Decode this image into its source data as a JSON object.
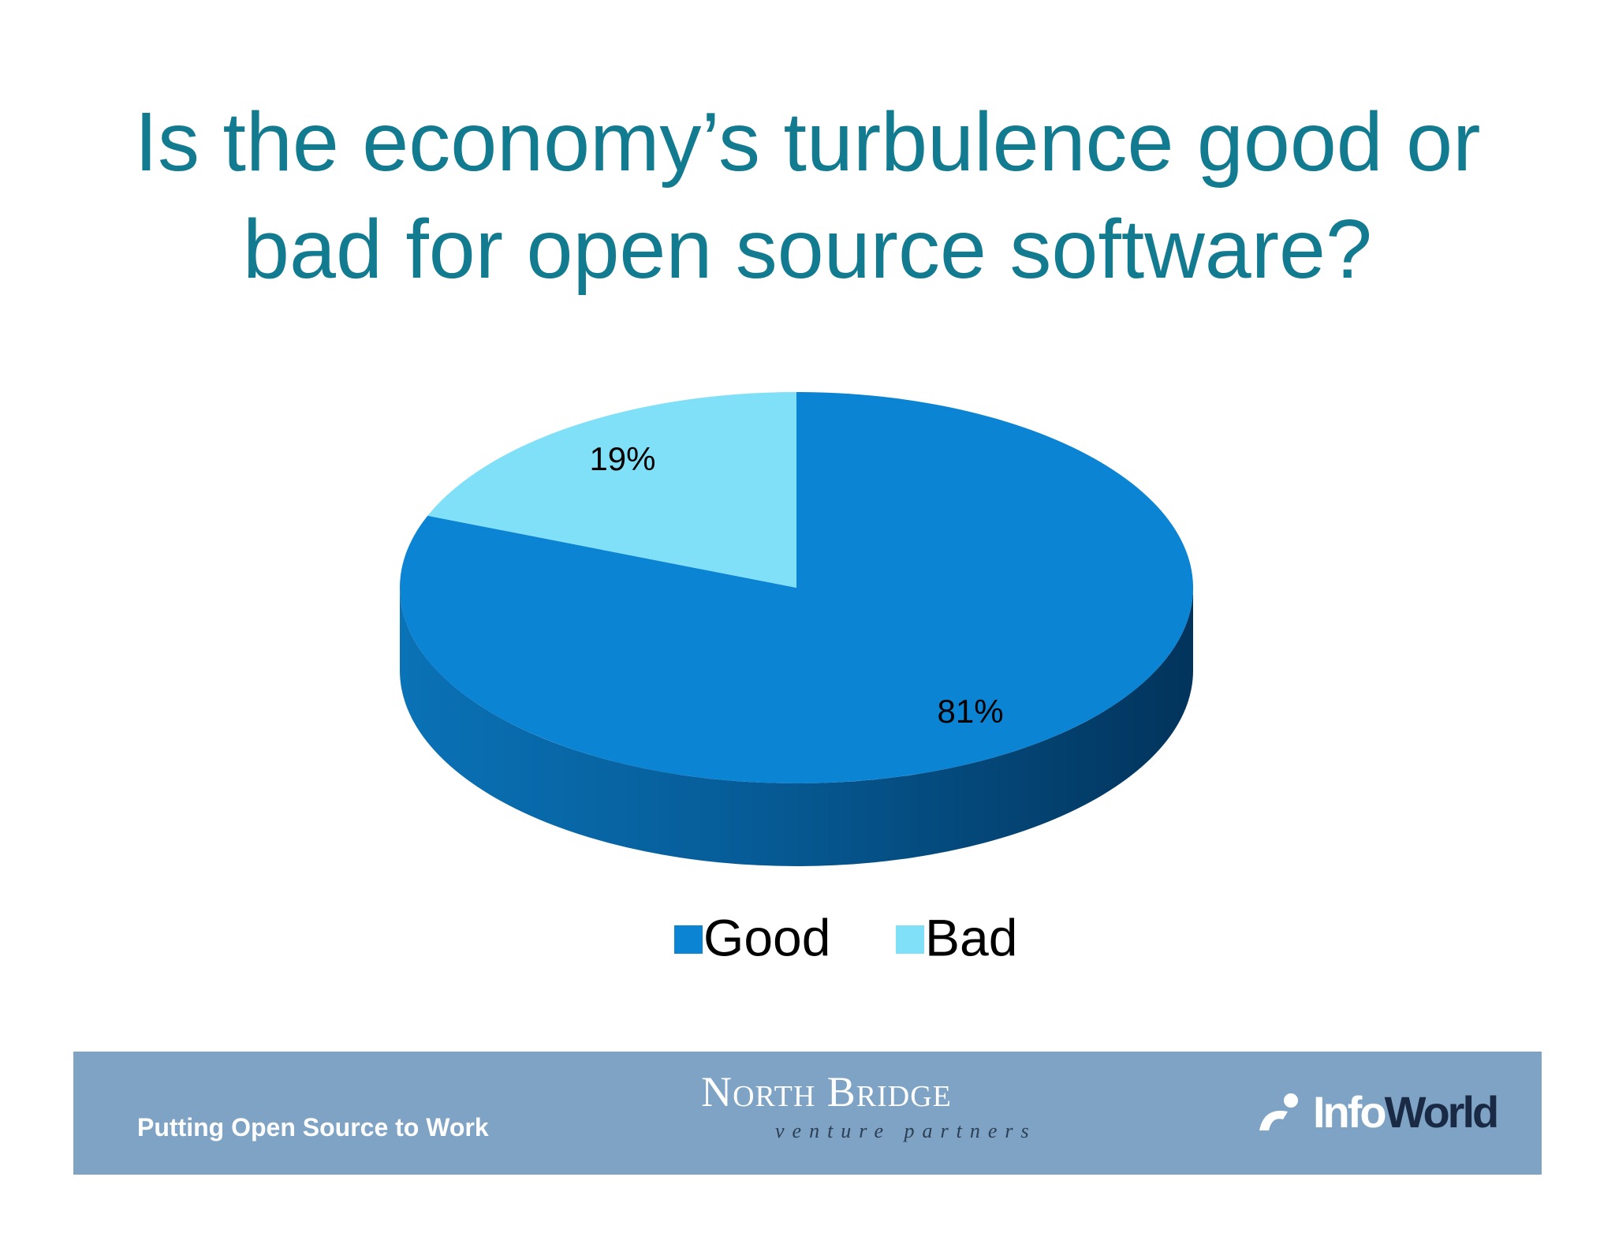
{
  "chart_data": {
    "type": "pie",
    "title": "Is the economy’s turbulence good or bad for open source software?",
    "categories": [
      "Good",
      "Bad"
    ],
    "values": [
      81,
      19
    ],
    "value_labels": [
      "81%",
      "19%"
    ],
    "colors": [
      "#0b84d4",
      "#7fe0f8"
    ],
    "legend": "bottom"
  },
  "footer": {
    "tagline": "Putting Open Source to Work",
    "partner": "North Bridge",
    "partner_sub": "venture partners",
    "logo": {
      "first": "Info",
      "second": "World"
    }
  }
}
